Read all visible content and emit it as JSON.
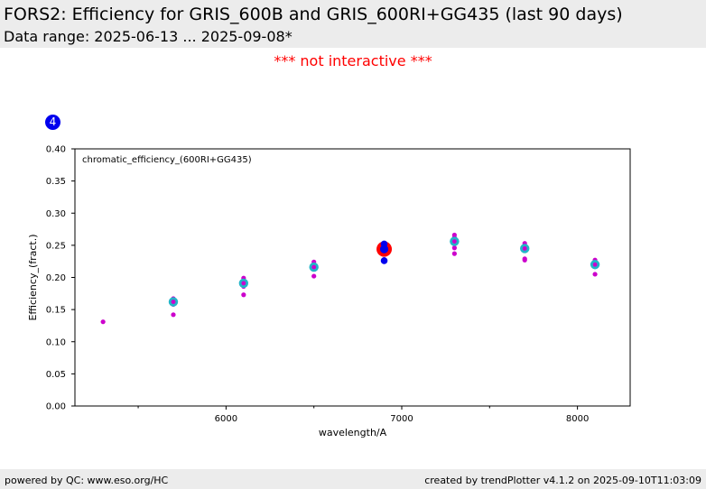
{
  "header": {
    "title": "FORS2: Efficiency for GRIS_600B and GRIS_600RI+GG435 (last 90 days)",
    "subtitle": "Data range: 2025-06-13 ... 2025-09-08*"
  },
  "notice": "*** not interactive ***",
  "badge": "4",
  "footer": {
    "left": "powered by QC: www.eso.org/HC",
    "right": "created by trendPlotter v4.1.2 on 2025-09-10T11:03:09"
  },
  "colors": {
    "individual": "#cc00cc",
    "median": "#22b4c8",
    "highlight_latest": "#ff0000",
    "highlight_recent": "#0000ee",
    "header_bg": "#ececec"
  },
  "chart_data": {
    "type": "scatter",
    "annotation": "chromatic_efficiency_(600RI+GG435)",
    "xlabel": "wavelength/A",
    "ylabel": "Efficiency_(fract.)",
    "xlim": [
      5140,
      8300
    ],
    "ylim": [
      0.0,
      0.4
    ],
    "xticks": [
      6000,
      7000,
      8000
    ],
    "xticks_minor": [
      5500,
      6500,
      7500
    ],
    "yticks": [
      0.0,
      0.05,
      0.1,
      0.15,
      0.2,
      0.25,
      0.3,
      0.35,
      0.4
    ],
    "grid": false,
    "series": [
      {
        "points": [
          {
            "x": 5300,
            "y": 0.131
          },
          {
            "x": 5700,
            "y": 0.167
          },
          {
            "x": 5700,
            "y": 0.164
          },
          {
            "x": 5700,
            "y": 0.158
          },
          {
            "x": 5700,
            "y": 0.142
          },
          {
            "x": 6100,
            "y": 0.199
          },
          {
            "x": 6100,
            "y": 0.195
          },
          {
            "x": 6100,
            "y": 0.19
          },
          {
            "x": 6100,
            "y": 0.186
          },
          {
            "x": 6100,
            "y": 0.173
          },
          {
            "x": 6500,
            "y": 0.224
          },
          {
            "x": 6500,
            "y": 0.219
          },
          {
            "x": 6500,
            "y": 0.214
          },
          {
            "x": 6500,
            "y": 0.202
          },
          {
            "x": 6900,
            "y": 0.252
          },
          {
            "x": 6900,
            "y": 0.246
          },
          {
            "x": 6900,
            "y": 0.24
          },
          {
            "x": 6900,
            "y": 0.228
          },
          {
            "x": 7300,
            "y": 0.266
          },
          {
            "x": 7300,
            "y": 0.262
          },
          {
            "x": 7300,
            "y": 0.254
          },
          {
            "x": 7300,
            "y": 0.246
          },
          {
            "x": 7300,
            "y": 0.237
          },
          {
            "x": 7700,
            "y": 0.253
          },
          {
            "x": 7700,
            "y": 0.248
          },
          {
            "x": 7700,
            "y": 0.242
          },
          {
            "x": 7700,
            "y": 0.229
          },
          {
            "x": 7700,
            "y": 0.227
          },
          {
            "x": 8100,
            "y": 0.227
          },
          {
            "x": 8100,
            "y": 0.222
          },
          {
            "x": 8100,
            "y": 0.217
          },
          {
            "x": 8100,
            "y": 0.205
          }
        ]
      },
      {
        "points": [
          {
            "x": 5700,
            "y": 0.162
          },
          {
            "x": 6100,
            "y": 0.191
          },
          {
            "x": 6500,
            "y": 0.216
          },
          {
            "x": 6900,
            "y": 0.244
          },
          {
            "x": 7300,
            "y": 0.256
          },
          {
            "x": 7700,
            "y": 0.245
          },
          {
            "x": 8100,
            "y": 0.22
          }
        ]
      },
      {
        "points": [
          {
            "x": 6900,
            "y": 0.244
          }
        ]
      },
      {
        "points": [
          {
            "x": 6900,
            "y": 0.252
          },
          {
            "x": 6900,
            "y": 0.244
          },
          {
            "x": 6900,
            "y": 0.226
          }
        ]
      }
    ]
  }
}
